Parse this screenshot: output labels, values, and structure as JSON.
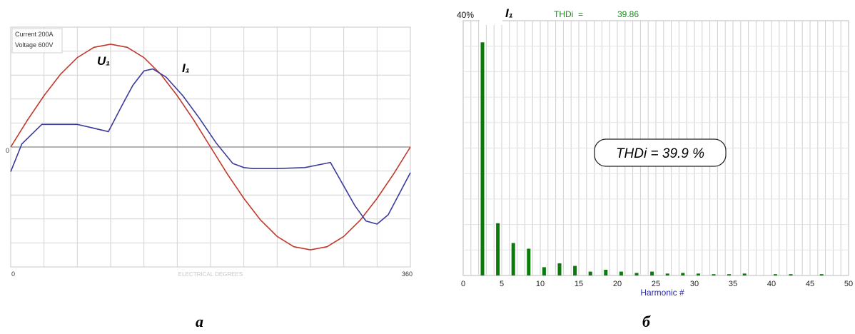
{
  "chart_data": [
    {
      "type": "line",
      "title": "",
      "legend_box": {
        "current": "Current 200A",
        "voltage": "Voltage 600V"
      },
      "xlabel": "ELECTRICAL DEGREES",
      "x_tick_labels": [
        "0",
        "360"
      ],
      "y_zero_label": "0",
      "xlim": [
        0,
        360
      ],
      "ylim": [
        -1,
        1
      ],
      "grid": true,
      "series": [
        {
          "name": "U₁",
          "color": "#c0392b",
          "x": [
            0,
            15,
            30,
            45,
            60,
            75,
            90,
            105,
            120,
            135,
            150,
            165,
            180,
            195,
            210,
            225,
            240,
            255,
            270,
            285,
            300,
            315,
            330,
            345,
            360
          ],
          "y": [
            0,
            0.26,
            0.5,
            0.71,
            0.87,
            0.97,
            1.0,
            0.97,
            0.87,
            0.71,
            0.5,
            0.26,
            0,
            -0.26,
            -0.5,
            -0.71,
            -0.87,
            -0.97,
            -1.0,
            -0.97,
            -0.87,
            -0.71,
            -0.5,
            -0.26,
            0
          ]
        },
        {
          "name": "I₁",
          "color": "#3b3b9b",
          "x": [
            0,
            10,
            28,
            60,
            88,
            100,
            110,
            120,
            128,
            140,
            155,
            170,
            185,
            200,
            210,
            218,
            240,
            265,
            288,
            300,
            310,
            320,
            330,
            340,
            360
          ],
          "y": [
            -0.24,
            0.03,
            0.22,
            0.22,
            0.15,
            0.4,
            0.6,
            0.74,
            0.76,
            0.68,
            0.5,
            0.28,
            0.04,
            -0.16,
            -0.2,
            -0.21,
            -0.21,
            -0.2,
            -0.15,
            -0.38,
            -0.57,
            -0.72,
            -0.75,
            -0.66,
            -0.25
          ]
        }
      ],
      "annotations": [
        "U₁",
        "I₁"
      ]
    },
    {
      "type": "bar",
      "title": "I₁",
      "header_label": "THDi  =",
      "header_value": "39.86",
      "ytick_top": "40%",
      "xlabel": "Harmonic #",
      "xlim": [
        0,
        50
      ],
      "ylim": [
        0,
        40
      ],
      "x_tick_labels": [
        "0",
        "5",
        "10",
        "15",
        "20",
        "25",
        "30",
        "35",
        "40",
        "45",
        "50"
      ],
      "grid": true,
      "bar_color": "#0a7a0a",
      "series": [
        {
          "harmonic": [
            2.5,
            4.5,
            6.5,
            8.5,
            10.5,
            12.5,
            14.5,
            16.5,
            18.5,
            20.5,
            22.5,
            24.5,
            26.5,
            28.5,
            30.5,
            32.5,
            34.5,
            36.5,
            40.5,
            42.5,
            46.5
          ],
          "values": [
            36.6,
            8.2,
            5.1,
            4.2,
            1.3,
            1.9,
            1.5,
            0.6,
            0.9,
            0.6,
            0.4,
            0.6,
            0.3,
            0.4,
            0.3,
            0.2,
            0.2,
            0.3,
            0.2,
            0.2,
            0.2
          ]
        }
      ],
      "annotation": "THDi = 39.9 %"
    }
  ],
  "captions": {
    "left": "a",
    "right": "б"
  }
}
